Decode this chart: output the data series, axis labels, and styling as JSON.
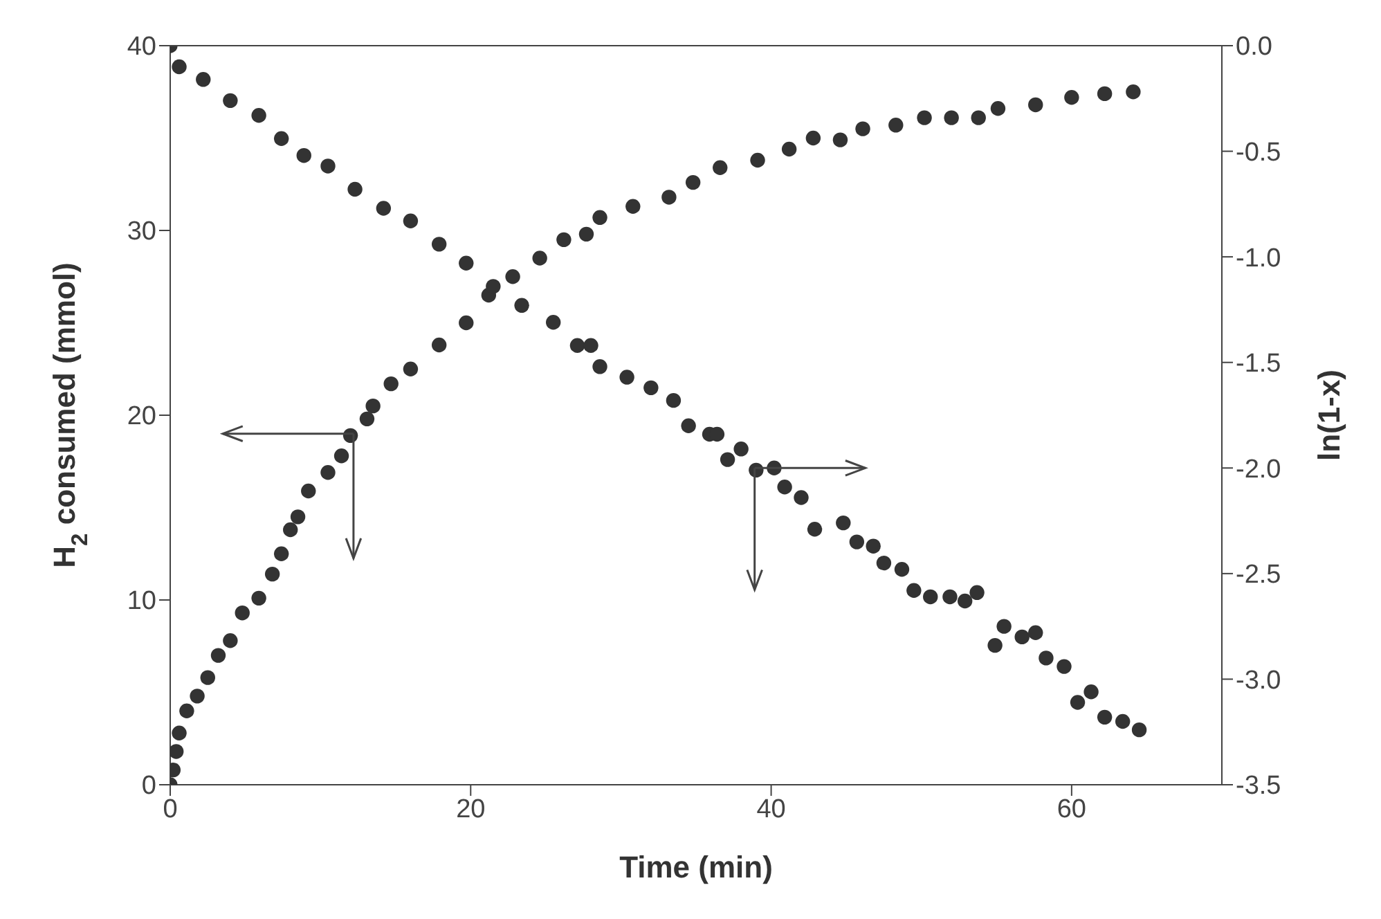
{
  "chart_data": {
    "type": "scatter",
    "xlabel": "Time (min)",
    "ylabel": "H$_{2}$ consumed (mmol)",
    "y2label": "ln(1-x)",
    "xlim": [
      0,
      70
    ],
    "xticks": [
      0,
      20,
      40,
      60
    ],
    "ylim": [
      0,
      40
    ],
    "yticks": [
      0,
      10,
      20,
      30,
      40
    ],
    "y2lim": [
      -3.5,
      0
    ],
    "y2ticks": [
      {
        "value": -3.5,
        "label": "-3.5"
      },
      {
        "value": -3,
        "label": "-3.0"
      },
      {
        "value": -2.5,
        "label": "-2.5"
      },
      {
        "value": -2,
        "label": "-2.0"
      },
      {
        "value": -1.5,
        "label": "-1.5"
      },
      {
        "value": -1,
        "label": "-1.0"
      },
      {
        "value": -0.5,
        "label": "-0.5"
      },
      {
        "value": 0,
        "label": "0.0"
      }
    ],
    "marker": "circle",
    "grid": false,
    "legend": false,
    "series": [
      {
        "color": "#333333",
        "x": [
          0,
          0.2,
          0.4,
          0.6,
          1.1,
          1.8,
          2.5,
          3.2,
          4.0,
          4.8,
          5.9,
          6.8,
          7.4,
          8.0,
          8.5,
          9.2,
          10.5,
          11.4,
          12,
          13.1,
          13.5,
          14.7,
          16,
          17.9,
          19.7,
          21.2,
          22.8,
          24.6,
          26.2,
          27.7,
          28.6,
          30.8,
          33.2,
          34.8,
          36.6,
          39.1,
          41.2,
          42.8,
          44.6,
          46.1,
          48.3,
          50.2,
          52,
          53.8,
          55.1,
          57.6,
          60,
          62.2,
          64.1
        ],
        "values": [
          0,
          0.8,
          1.8,
          2.8,
          4.0,
          4.8,
          5.8,
          7.0,
          7.8,
          9.3,
          10.1,
          11.4,
          12.5,
          13.8,
          14.5,
          15.9,
          16.9,
          17.8,
          18.9,
          19.8,
          20.5,
          21.7,
          22.5,
          23.8,
          25.0,
          26.5,
          27.5,
          28.5,
          29.5,
          29.8,
          30.7,
          31.3,
          31.8,
          32.6,
          33.4,
          33.8,
          34.4,
          35.0,
          34.9,
          35.5,
          35.7,
          36.1,
          36.1,
          36.1,
          36.6,
          36.8,
          37.2,
          37.4,
          37.5
        ]
      },
      {
        "color": "#333333",
        "axis": "y2",
        "x": [
          0,
          0.6,
          2.2,
          4,
          5.9,
          7.4,
          8.9,
          10.5,
          12.3,
          14.2,
          16,
          17.9,
          19.7,
          21.5,
          23.4,
          25.5,
          27.1,
          28,
          28.6,
          30.4,
          32,
          33.5,
          34.5,
          35.9,
          36.4,
          37.1,
          38,
          39,
          40.2,
          40.9,
          42,
          42.9,
          44.8,
          45.7,
          46.8,
          47.5,
          48.7,
          49.5,
          50.6,
          51.9,
          52.9,
          53.7,
          54.9,
          55.5,
          56.7,
          57.6,
          58.3,
          59.5,
          60.4,
          61.3,
          62.2,
          63.4,
          64.5
        ],
        "values": [
          0,
          -0.1,
          -0.16,
          -0.26,
          -0.33,
          -0.44,
          -0.52,
          -0.57,
          -0.68,
          -0.77,
          -0.83,
          -0.94,
          -1.03,
          -1.14,
          -1.23,
          -1.31,
          -1.42,
          -1.42,
          -1.52,
          -1.57,
          -1.62,
          -1.68,
          -1.8,
          -1.84,
          -1.84,
          -1.96,
          -1.91,
          -2.01,
          -2.0,
          -2.09,
          -2.14,
          -2.29,
          -2.26,
          -2.35,
          -2.37,
          -2.45,
          -2.48,
          -2.58,
          -2.61,
          -2.61,
          -2.63,
          -2.59,
          -2.84,
          -2.75,
          -2.8,
          -2.78,
          -2.9,
          -2.94,
          -3.11,
          -3.06,
          -3.18,
          -3.2,
          -3.24
        ]
      }
    ]
  }
}
